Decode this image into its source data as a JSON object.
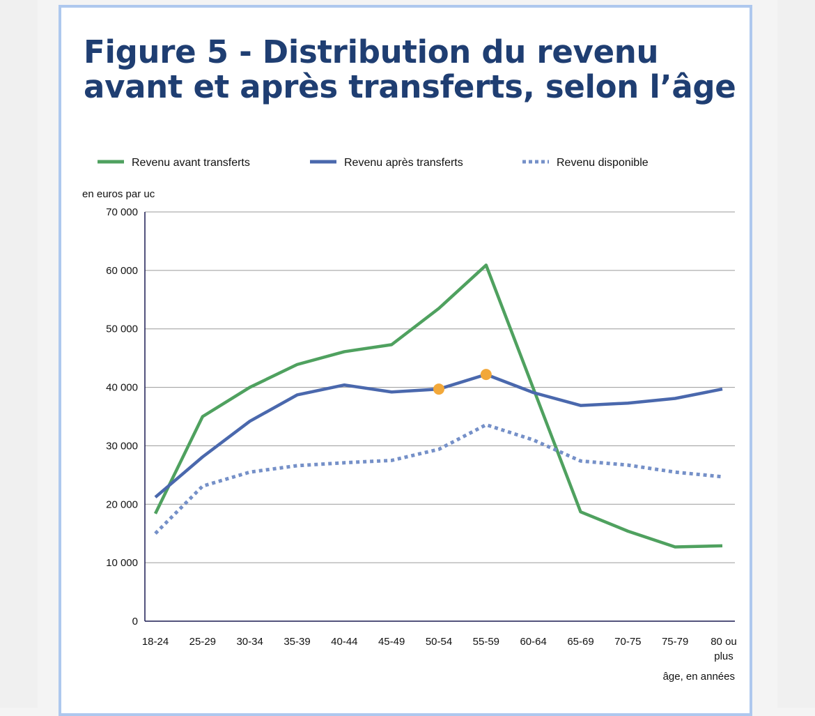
{
  "title": "Figure 5 - Distribution du revenu avant et après transferts, selon l’âge",
  "chart_data": {
    "type": "line",
    "title": "Figure 5 - Distribution du revenu avant et après transferts, selon l’âge",
    "ylabel": "en euros par uc",
    "xlabel": "âge, en années",
    "ylim": [
      0,
      70000
    ],
    "yticks": [
      0,
      10000,
      20000,
      30000,
      40000,
      50000,
      60000,
      70000
    ],
    "ytick_labels": [
      "0",
      "10 000",
      "20 000",
      "30 000",
      "40 000",
      "50 000",
      "60 000",
      "70 000"
    ],
    "grid": true,
    "legend_position": "top",
    "categories": [
      "18-24",
      "25-29",
      "30-34",
      "35-39",
      "40-44",
      "45-49",
      "50-54",
      "55-59",
      "60-64",
      "65-69",
      "70-75",
      "75-79",
      "80 ou plus"
    ],
    "series": [
      {
        "name": "Revenu avant transferts",
        "color": "#4fa15f",
        "style": "solid",
        "values": [
          18400,
          35000,
          40000,
          43900,
          46100,
          47300,
          53500,
          60900,
          39800,
          18700,
          15400,
          12700,
          12900
        ]
      },
      {
        "name": "Revenu après transferts",
        "color": "#4a68ad",
        "style": "solid",
        "values": [
          21200,
          28100,
          34200,
          38700,
          40400,
          39200,
          39700,
          42200,
          39100,
          36900,
          37300,
          38100,
          39700
        ]
      },
      {
        "name": "Revenu disponible",
        "color": "#7590c8",
        "style": "dotted",
        "values": [
          15000,
          23100,
          25500,
          26600,
          27100,
          27500,
          29400,
          33600,
          31000,
          27400,
          26700,
          25500,
          24700
        ]
      }
    ],
    "highlights": [
      {
        "series": "Revenu après transferts",
        "category": "50-54",
        "color": "#f2a83a"
      },
      {
        "series": "Revenu après transferts",
        "category": "55-59",
        "color": "#f2a83a"
      }
    ]
  }
}
